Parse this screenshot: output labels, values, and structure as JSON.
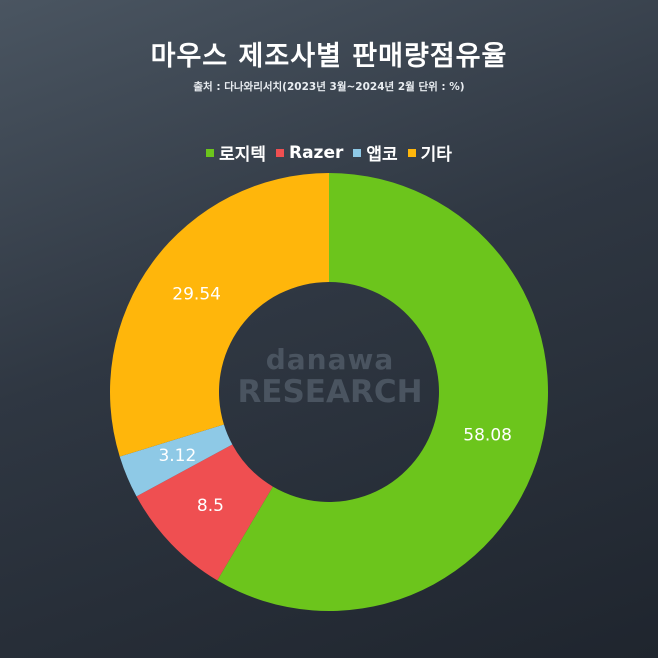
{
  "title": "마우스 제조사별 판매량점유율",
  "subtitle": "출처 : 다나와리서치(2023년 3월~2024년 2월 단위 : %)",
  "watermark": {
    "line1": "danawa",
    "line2": "RESEARCH"
  },
  "chart_data": {
    "type": "pie",
    "subtype": "donut",
    "title": "마우스 제조사별 판매량점유율",
    "legend_position": "top",
    "categories": [
      "로지텍",
      "Razer",
      "앱코",
      "기타"
    ],
    "values": [
      58.08,
      8.5,
      3.12,
      29.54
    ],
    "value_labels": [
      "58.08",
      "8.5",
      "3.12",
      "29.54"
    ],
    "colors": [
      "#6cc51c",
      "#ef4f51",
      "#8ec9e6",
      "#ffb60b"
    ]
  }
}
